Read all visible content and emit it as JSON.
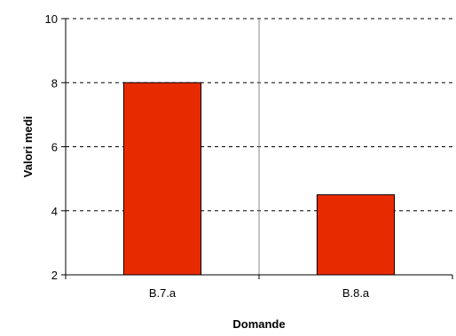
{
  "chart_data": {
    "type": "bar",
    "title": "",
    "xlabel": "Domande",
    "ylabel": "Valori medi",
    "categories": [
      "B.7.a",
      "B.8.a"
    ],
    "values": [
      8.0,
      4.5
    ],
    "ylim": [
      2,
      10
    ],
    "yticks": [
      2,
      4,
      6,
      8,
      10
    ],
    "grid": "horizontal dashed",
    "bar_color": "#e82a00",
    "legend": "none"
  }
}
